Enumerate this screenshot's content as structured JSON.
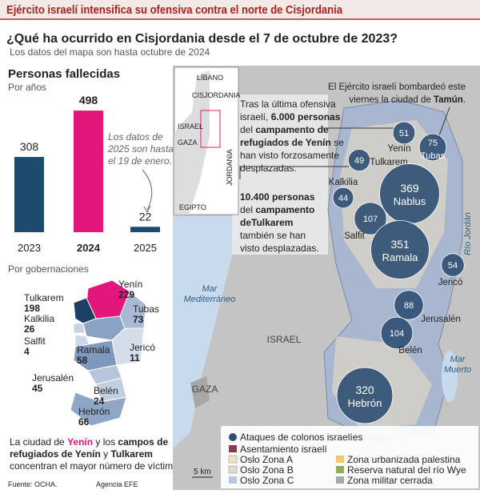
{
  "header": {
    "title": "Ejército israelí intensifica su ofensiva contra el norte de Cisjordania",
    "subtitle": "¿Qué ha ocurrido en Cisjordania desde el 7 de octubre de 2023?",
    "note": "Los datos del mapa son hasta octubre de 2024"
  },
  "chart_data": {
    "type": "bar",
    "title": "Personas fallecidas",
    "subtitle": "Por años",
    "categories": [
      "2023",
      "2024",
      "2025"
    ],
    "values": [
      308,
      498,
      22
    ],
    "colors": [
      "#1f4a70",
      "#e3177b",
      "#1f4a70"
    ],
    "annotation": [
      "Los datos de",
      "2025 son hasta",
      "el 19 de enero."
    ]
  },
  "governorates": {
    "title": "Por gobernaciones",
    "items": [
      {
        "name": "Yenín",
        "value": 229
      },
      {
        "name": "Tulkarem",
        "value": 198
      },
      {
        "name": "Tubas",
        "value": 73
      },
      {
        "name": "Kalkilia",
        "value": 26
      },
      {
        "name": "Salfit",
        "value": 4
      },
      {
        "name": "Ramala",
        "value": 58
      },
      {
        "name": "Jericó",
        "value": 11
      },
      {
        "name": "Jerusalén",
        "value": 45
      },
      {
        "name": "Belén",
        "value": 24
      },
      {
        "name": "Hebrón",
        "value": 66
      }
    ],
    "note": [
      [
        "La ciudad de ",
        "Yenín",
        " y los ",
        "campos de"
      ],
      [
        "refugiados de Yenín",
        " y ",
        "Tulkarem"
      ],
      [
        "concentran el mayor número de víctimas."
      ]
    ]
  },
  "inset": {
    "labels": [
      "LÍBANO",
      "CISJORDANIA",
      "ISRAEL",
      "GAZA",
      "JORDANIA",
      "EGIPTO"
    ]
  },
  "map": {
    "bubbles": [
      {
        "name": "Yenín",
        "value": 51
      },
      {
        "name": "Tubas",
        "value": 75
      },
      {
        "name": "Tulkarem",
        "value": 49
      },
      {
        "name": "Kalkilia",
        "value": 44
      },
      {
        "name": "Nablus",
        "value": 369
      },
      {
        "name": "Salfit",
        "value": 107
      },
      {
        "name": "Ramala",
        "value": 351
      },
      {
        "name": "Jericó",
        "value": 54
      },
      {
        "name": "Jerusalén",
        "value": 88
      },
      {
        "name": "Belén",
        "value": 104
      },
      {
        "name": "Hebrón",
        "value": 320
      }
    ],
    "places": [
      "Mar",
      "Mediterráneo",
      "ISRAEL",
      "GAZA",
      "Mar",
      "Muerto",
      "Río Jordán"
    ],
    "annotations": [
      [
        [
          "El Ejército israelí bombardeó este"
        ],
        [
          "viernes la ciudad de ",
          "Tamún",
          "."
        ]
      ],
      [
        [
          "Tras la última ofensiva"
        ],
        [
          "israelí, ",
          "6.000 personas"
        ],
        [
          "del ",
          "campamento de"
        ],
        [
          "refugiados de Yenín",
          " se"
        ],
        [
          "han visto forzosamente"
        ],
        [
          "desplazadas."
        ]
      ],
      [
        [
          "10.400 personas"
        ],
        [
          "del ",
          "campamento"
        ],
        [
          "deTulkarem"
        ],
        [
          "también se han"
        ],
        [
          "visto desplazadas."
        ]
      ]
    ],
    "legend": [
      "Ataques de colonos israelíes",
      "Asentamiento israelí",
      "Oslo Zona A",
      "Oslo Zona B",
      "Oslo Zona C",
      "Zona urbanizada palestina",
      "Reserva natural del río Wye",
      "Zona militar cerrada"
    ],
    "scale": "5 km"
  },
  "footer": {
    "source": "Fuente: OCHA.",
    "credit": "Agencia EFE"
  }
}
